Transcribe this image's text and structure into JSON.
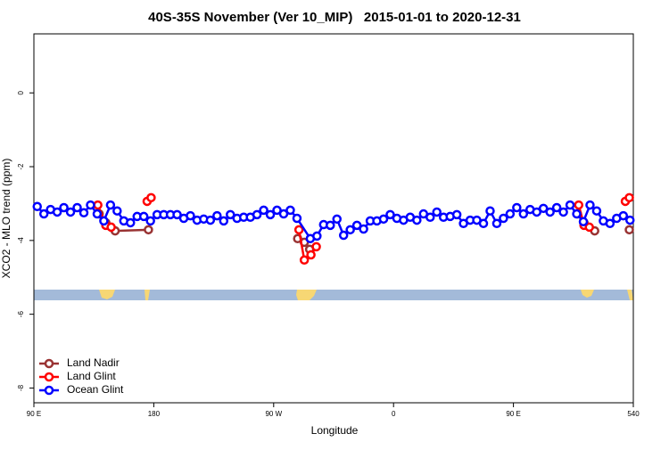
{
  "chart_data": {
    "type": "line",
    "title": "40S-35S November (Ver 10_MIP)   2015-01-01 to 2020-12-31",
    "xlabel": "Longitude",
    "ylabel": "XCO2 - MLO trend (ppm)",
    "xlim": [
      90,
      540
    ],
    "xticks": [
      {
        "value": 90,
        "label": "90 E"
      },
      180,
      {
        "value": 270,
        "label": "90 W"
      },
      {
        "value": 360,
        "label": "0"
      },
      {
        "value": 450,
        "label": "90 E"
      },
      540
    ],
    "ylim": [
      -8.4,
      1.6
    ],
    "yticks": [
      0,
      -2,
      -4,
      -6,
      -8
    ],
    "legend": "bottom-left",
    "series": [
      {
        "name": "Land Nadir",
        "color": "#993333",
        "x": [
          139,
          144,
          151,
          176,
          null,
          288,
          293,
          297,
          null,
          498,
          503,
          511,
          null,
          537
        ],
        "values": [
          -3.28,
          -3.52,
          -3.74,
          -3.71,
          null,
          -3.95,
          -4.05,
          -4.24,
          null,
          -3.28,
          -3.52,
          -3.74,
          null,
          -3.71
        ]
      },
      {
        "name": "Land Glint",
        "color": "#ff0000",
        "x": [
          138,
          144,
          148,
          null,
          175,
          178,
          null,
          289,
          293,
          298,
          302,
          null,
          499,
          503,
          507,
          null,
          534,
          537
        ],
        "values": [
          -3.04,
          -3.59,
          -3.64,
          null,
          -2.94,
          -2.84,
          null,
          -3.71,
          -4.53,
          -4.39,
          -4.17,
          null,
          -3.04,
          -3.59,
          -3.64,
          null,
          -2.94,
          -2.84
        ]
      },
      {
        "name": "Ocean Glint",
        "color": "#0000ff",
        "x": [
          92.5,
          97.5,
          102.5,
          107.5,
          112.5,
          117.5,
          122.5,
          127.5,
          132.5,
          137.5,
          142.5,
          147.5,
          152.5,
          157.5,
          162.5,
          167.5,
          172.5,
          177.5,
          182.5,
          187.5,
          192.5,
          197.5,
          202.5,
          207.5,
          212.5,
          217.5,
          222.5,
          227.5,
          232.5,
          237.5,
          242.5,
          247.5,
          252.5,
          257.5,
          262.5,
          267.5,
          272.5,
          277.5,
          282.5,
          287.5,
          297.5,
          302.5,
          307.5,
          312.5,
          317.5,
          322.5,
          327.5,
          332.5,
          337.5,
          342.5,
          347.5,
          352.5,
          357.5,
          362.5,
          367.5,
          372.5,
          377.5,
          382.5,
          387.5,
          392.5,
          397.5,
          402.5,
          407.5,
          412.5,
          417.5,
          422.5,
          427.5,
          432.5,
          437.5,
          442.5,
          447.5,
          452.5,
          457.5,
          462.5,
          467.5,
          472.5,
          477.5,
          482.5,
          487.5,
          492.5,
          497.5,
          502.5,
          507.5,
          512.5,
          517.5,
          522.5,
          527.5,
          532.5,
          537.5
        ],
        "values": [
          -3.08,
          -3.28,
          -3.16,
          -3.23,
          -3.11,
          -3.23,
          -3.11,
          -3.25,
          -3.04,
          -3.28,
          -3.47,
          -3.04,
          -3.2,
          -3.47,
          -3.52,
          -3.35,
          -3.35,
          -3.47,
          -3.3,
          -3.3,
          -3.3,
          -3.3,
          -3.4,
          -3.33,
          -3.45,
          -3.42,
          -3.45,
          -3.33,
          -3.47,
          -3.3,
          -3.4,
          -3.37,
          -3.37,
          -3.3,
          -3.18,
          -3.3,
          -3.18,
          -3.28,
          -3.18,
          -3.4,
          -3.95,
          -3.88,
          -3.57,
          -3.59,
          -3.42,
          -3.86,
          -3.71,
          -3.59,
          -3.69,
          -3.47,
          -3.47,
          -3.42,
          -3.3,
          -3.4,
          -3.45,
          -3.37,
          -3.45,
          -3.28,
          -3.37,
          -3.23,
          -3.37,
          -3.35,
          -3.3,
          -3.54,
          -3.45,
          -3.45,
          -3.54,
          -3.2,
          -3.54,
          -3.4,
          -3.28,
          -3.11,
          -3.28,
          -3.16,
          -3.23,
          -3.13,
          -3.23,
          -3.11,
          -3.23,
          -3.04,
          -3.28,
          -3.49,
          -3.04,
          -3.2,
          -3.47,
          -3.54,
          -3.4,
          -3.33,
          -3.45
        ]
      }
    ]
  }
}
